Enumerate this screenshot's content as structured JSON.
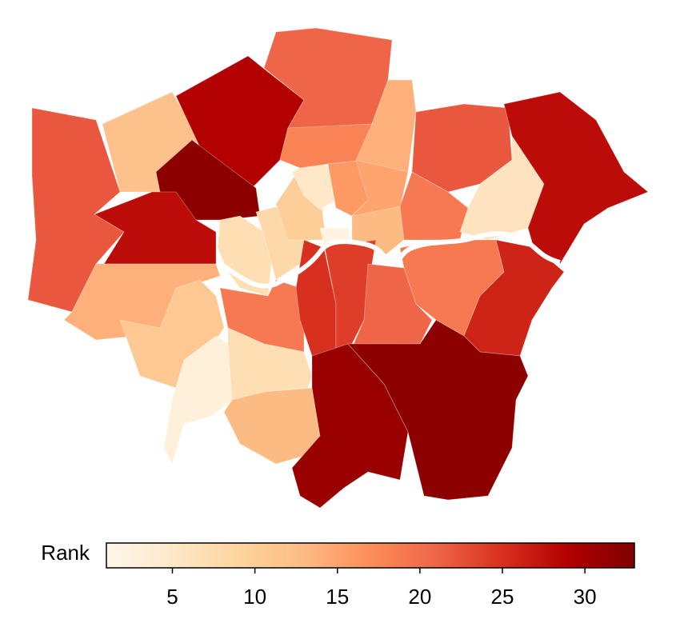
{
  "chart_data": {
    "type": "choropleth",
    "values": [
      22,
      12,
      29,
      21,
      32,
      28,
      14,
      11,
      3,
      7,
      8,
      10,
      5,
      2,
      16,
      18,
      14,
      15,
      13,
      22,
      19,
      6,
      28,
      19,
      25,
      24,
      21,
      19,
      26,
      7,
      13,
      31,
      32
    ],
    "colorbar": {
      "label": "Rank",
      "lim": [
        1,
        33
      ],
      "ticks": [
        5,
        10,
        15,
        20,
        25,
        30
      ]
    },
    "colormap": [
      "#fff7ec",
      "#fee8c8",
      "#fdd49e",
      "#fdbb84",
      "#fc8d59",
      "#ef6548",
      "#d7301f",
      "#b30000",
      "#7f0000"
    ]
  }
}
